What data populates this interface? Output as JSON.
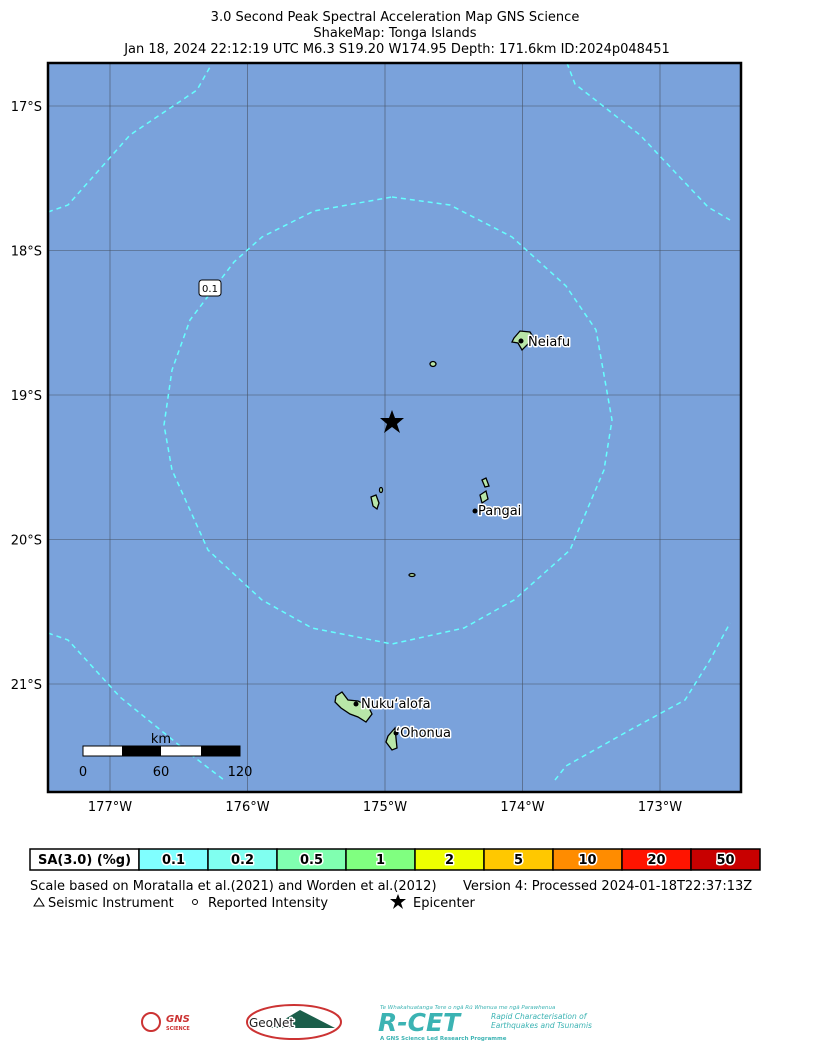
{
  "title": {
    "line1": "3.0 Second Peak Spectral Acceleration Map GNS Science",
    "line2": "ShakeMap: Tonga Islands",
    "line3": "Jan 18, 2024 22:12:19 UTC M6.3 S19.20 W174.95 Depth: 171.6km ID:2024p048451"
  },
  "map": {
    "lat_labels": [
      "17°S",
      "18°S",
      "19°S",
      "20°S",
      "21°S"
    ],
    "lon_labels": [
      "177°W",
      "176°W",
      "175°W",
      "174°W",
      "173°W"
    ],
    "places": [
      "Neiafu",
      "Pangai",
      "Nukuʻalofa",
      "ʻOhonua"
    ],
    "contour_label": "0.1",
    "scale_bar": {
      "unit": "km",
      "ticks": [
        "0",
        "60",
        "120"
      ]
    }
  },
  "legend": {
    "header": "SA(3.0) (%g)",
    "bins": [
      {
        "label": "0.1",
        "color": "#80ffff"
      },
      {
        "label": "0.2",
        "color": "#80fff0"
      },
      {
        "label": "0.5",
        "color": "#80ffb0"
      },
      {
        "label": "1",
        "color": "#80ff80"
      },
      {
        "label": "2",
        "color": "#eeff00"
      },
      {
        "label": "5",
        "color": "#ffc800"
      },
      {
        "label": "10",
        "color": "#ff8c00"
      },
      {
        "label": "20",
        "color": "#ff1400"
      },
      {
        "label": "50",
        "color": "#c80000"
      }
    ]
  },
  "footer": {
    "note": "Scale based on Moratalla et al.(2021) and Worden et al.(2012)",
    "version": "Version 4: Processed 2024-01-18T22:37:13Z",
    "symbols": [
      "Seismic Instrument",
      "Reported Intensity",
      "Epicenter"
    ]
  },
  "logos": {
    "gns": "GNS",
    "gns_sub": "SCIENCE",
    "geonet": "GeoNet",
    "rcet_top": "Te Whakahuatanga Tere o ngā Rū Whenua me ngā Parawhenua",
    "rcet": "R-CET",
    "rcet_desc1": "Rapid Characterisation of",
    "rcet_desc2": "Earthquakes and Tsunamis",
    "rcet_bottom": "A GNS Science Led Research Programme"
  }
}
